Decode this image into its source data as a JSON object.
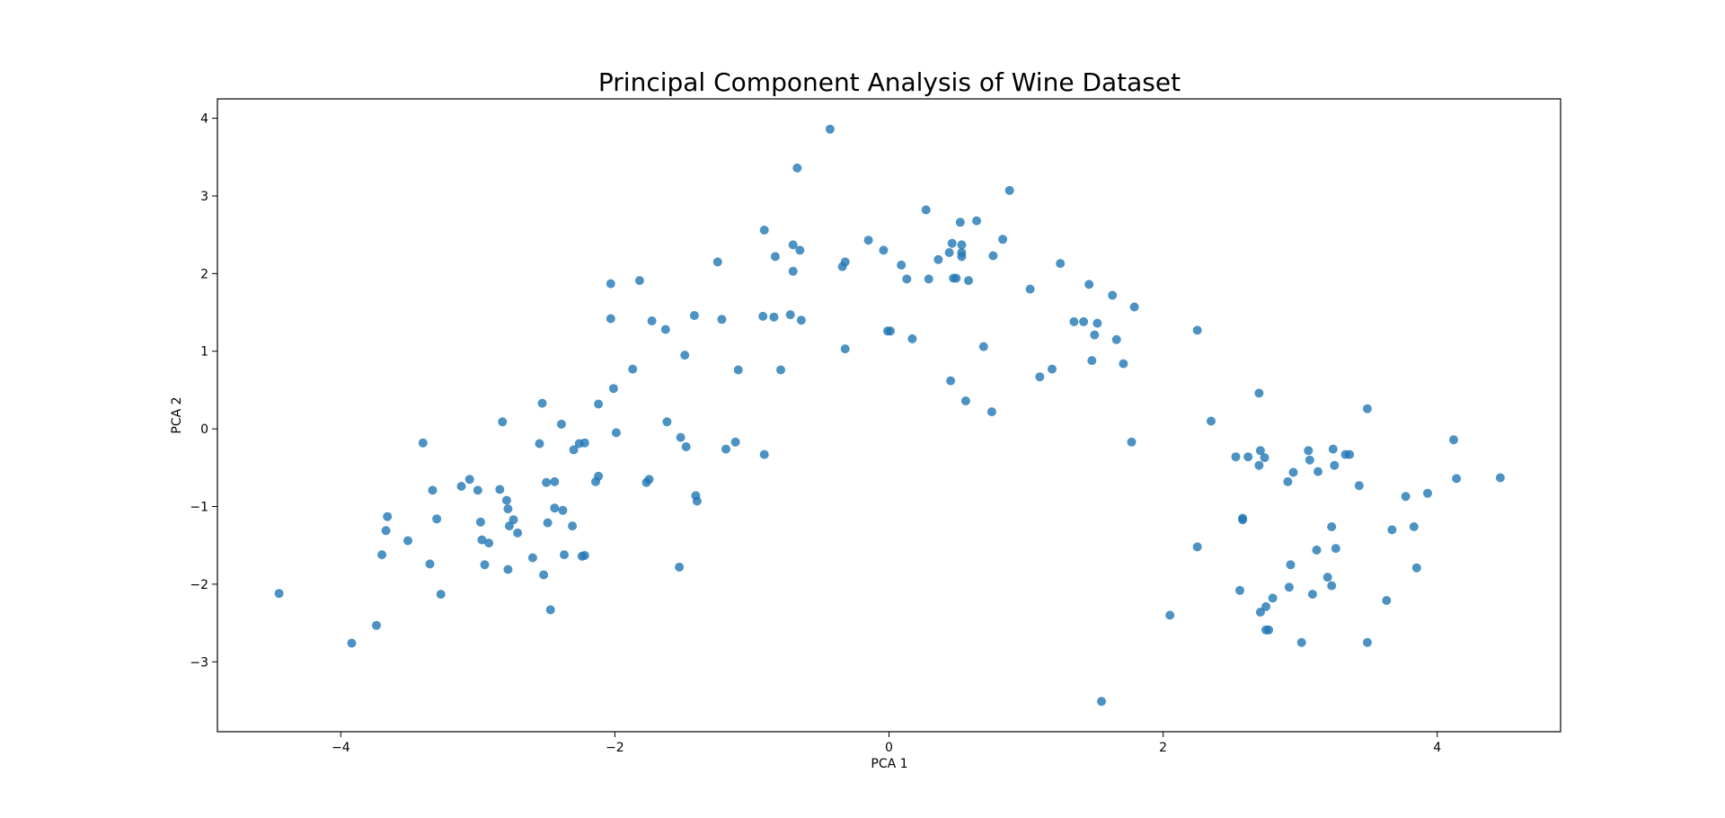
{
  "chart_data": {
    "type": "scatter",
    "title": "Principal Component Analysis of Wine Dataset",
    "xlabel": "PCA 1",
    "ylabel": "PCA 2",
    "xlim": [
      -4.9,
      4.9
    ],
    "ylim": [
      -3.9,
      4.25
    ],
    "xticks": [
      -4,
      -2,
      0,
      2,
      4
    ],
    "yticks": [
      -3,
      -2,
      -1,
      0,
      1,
      2,
      3,
      4
    ],
    "xtick_labels": [
      "−4",
      "−2",
      "0",
      "2",
      "4"
    ],
    "ytick_labels": [
      "−3",
      "−2",
      "−1",
      "0",
      "1",
      "2",
      "3",
      "4"
    ],
    "grid": false,
    "marker_color": "#1f77b4",
    "points": [
      [
        -4.45,
        -2.12
      ],
      [
        -3.92,
        -2.76
      ],
      [
        -3.74,
        -2.53
      ],
      [
        -3.7,
        -1.62
      ],
      [
        -3.67,
        -1.31
      ],
      [
        -3.66,
        -1.13
      ],
      [
        -3.51,
        -1.44
      ],
      [
        -3.4,
        -0.18
      ],
      [
        -3.35,
        -1.74
      ],
      [
        -3.33,
        -0.79
      ],
      [
        -3.3,
        -1.16
      ],
      [
        -3.27,
        -2.13
      ],
      [
        -3.12,
        -0.74
      ],
      [
        -3.06,
        -0.65
      ],
      [
        -3.0,
        -0.79
      ],
      [
        -2.98,
        -1.2
      ],
      [
        -2.97,
        -1.43
      ],
      [
        -2.95,
        -1.75
      ],
      [
        -2.92,
        -1.47
      ],
      [
        -2.84,
        -0.78
      ],
      [
        -2.82,
        0.09
      ],
      [
        -2.79,
        -0.92
      ],
      [
        -2.78,
        -1.03
      ],
      [
        -2.78,
        -1.81
      ],
      [
        -2.77,
        -1.25
      ],
      [
        -2.74,
        -1.17
      ],
      [
        -2.71,
        -1.34
      ],
      [
        -2.6,
        -1.66
      ],
      [
        -2.55,
        -0.19
      ],
      [
        -2.53,
        0.33
      ],
      [
        -2.52,
        -1.88
      ],
      [
        -2.5,
        -0.69
      ],
      [
        -2.49,
        -1.21
      ],
      [
        -2.47,
        -2.33
      ],
      [
        -2.44,
        -0.68
      ],
      [
        -2.44,
        -1.02
      ],
      [
        -2.39,
        0.06
      ],
      [
        -2.38,
        -1.05
      ],
      [
        -2.37,
        -1.62
      ],
      [
        -2.31,
        -1.25
      ],
      [
        -2.3,
        -0.27
      ],
      [
        -2.26,
        -0.19
      ],
      [
        -2.24,
        -1.64
      ],
      [
        -2.22,
        -1.63
      ],
      [
        -2.22,
        -0.18
      ],
      [
        -2.14,
        -0.68
      ],
      [
        -2.12,
        -0.61
      ],
      [
        -2.12,
        0.32
      ],
      [
        -2.03,
        1.87
      ],
      [
        -2.03,
        1.42
      ],
      [
        -2.01,
        0.52
      ],
      [
        -1.99,
        -0.05
      ],
      [
        -1.87,
        0.77
      ],
      [
        -1.82,
        1.91
      ],
      [
        -1.77,
        -0.69
      ],
      [
        -1.75,
        -0.65
      ],
      [
        -1.73,
        1.39
      ],
      [
        -1.63,
        1.28
      ],
      [
        -1.62,
        0.09
      ],
      [
        -1.53,
        -1.78
      ],
      [
        -1.52,
        -0.11
      ],
      [
        -1.49,
        0.95
      ],
      [
        -1.48,
        -0.23
      ],
      [
        -1.42,
        1.46
      ],
      [
        -1.41,
        -0.86
      ],
      [
        -1.4,
        -0.93
      ],
      [
        -1.25,
        2.15
      ],
      [
        -1.22,
        1.41
      ],
      [
        -1.19,
        -0.26
      ],
      [
        -1.12,
        -0.17
      ],
      [
        -1.1,
        0.76
      ],
      [
        -0.92,
        1.45
      ],
      [
        -0.91,
        2.56
      ],
      [
        -0.91,
        -0.33
      ],
      [
        -0.84,
        1.44
      ],
      [
        -0.83,
        2.22
      ],
      [
        -0.79,
        0.76
      ],
      [
        -0.72,
        1.47
      ],
      [
        -0.7,
        2.37
      ],
      [
        -0.7,
        2.03
      ],
      [
        -0.67,
        3.36
      ],
      [
        -0.65,
        2.3
      ],
      [
        -0.64,
        1.4
      ],
      [
        -0.43,
        3.86
      ],
      [
        -0.34,
        2.09
      ],
      [
        -0.32,
        2.15
      ],
      [
        -0.32,
        1.03
      ],
      [
        -0.15,
        2.43
      ],
      [
        -0.04,
        2.3
      ],
      [
        -0.01,
        1.26
      ],
      [
        0.01,
        1.26
      ],
      [
        0.09,
        2.11
      ],
      [
        0.13,
        1.93
      ],
      [
        0.17,
        1.16
      ],
      [
        0.27,
        2.82
      ],
      [
        0.29,
        1.93
      ],
      [
        0.36,
        2.18
      ],
      [
        0.44,
        2.27
      ],
      [
        0.45,
        0.62
      ],
      [
        0.46,
        2.39
      ],
      [
        0.47,
        1.94
      ],
      [
        0.49,
        1.94
      ],
      [
        0.52,
        2.66
      ],
      [
        0.53,
        2.37
      ],
      [
        0.53,
        2.27
      ],
      [
        0.53,
        2.22
      ],
      [
        0.56,
        0.36
      ],
      [
        0.58,
        1.91
      ],
      [
        0.64,
        2.68
      ],
      [
        0.69,
        1.06
      ],
      [
        0.75,
        0.22
      ],
      [
        0.76,
        2.23
      ],
      [
        0.83,
        2.44
      ],
      [
        0.88,
        3.07
      ],
      [
        1.03,
        1.8
      ],
      [
        1.1,
        0.67
      ],
      [
        1.19,
        0.77
      ],
      [
        1.25,
        2.13
      ],
      [
        1.35,
        1.38
      ],
      [
        1.42,
        1.38
      ],
      [
        1.46,
        1.86
      ],
      [
        1.48,
        0.88
      ],
      [
        1.5,
        1.21
      ],
      [
        1.52,
        1.36
      ],
      [
        1.55,
        -3.51
      ],
      [
        1.63,
        1.72
      ],
      [
        1.66,
        1.15
      ],
      [
        1.71,
        0.84
      ],
      [
        1.77,
        -0.17
      ],
      [
        1.79,
        1.57
      ],
      [
        2.05,
        -2.4
      ],
      [
        2.25,
        1.27
      ],
      [
        2.25,
        -1.52
      ],
      [
        2.35,
        0.1
      ],
      [
        2.53,
        -0.36
      ],
      [
        2.56,
        -2.08
      ],
      [
        2.58,
        -1.15
      ],
      [
        2.58,
        -1.17
      ],
      [
        2.62,
        -0.36
      ],
      [
        2.7,
        0.46
      ],
      [
        2.7,
        -0.47
      ],
      [
        2.71,
        -2.36
      ],
      [
        2.71,
        -0.28
      ],
      [
        2.74,
        -0.37
      ],
      [
        2.75,
        -2.29
      ],
      [
        2.75,
        -2.59
      ],
      [
        2.77,
        -2.59
      ],
      [
        2.8,
        -2.18
      ],
      [
        2.91,
        -0.68
      ],
      [
        2.92,
        -2.04
      ],
      [
        2.93,
        -1.75
      ],
      [
        2.95,
        -0.56
      ],
      [
        3.01,
        -2.75
      ],
      [
        3.06,
        -0.28
      ],
      [
        3.07,
        -0.4
      ],
      [
        3.09,
        -2.13
      ],
      [
        3.12,
        -1.56
      ],
      [
        3.13,
        -0.55
      ],
      [
        3.2,
        -1.91
      ],
      [
        3.23,
        -2.02
      ],
      [
        3.23,
        -1.26
      ],
      [
        3.24,
        -0.26
      ],
      [
        3.25,
        -0.47
      ],
      [
        3.26,
        -1.54
      ],
      [
        3.33,
        -0.33
      ],
      [
        3.36,
        -0.33
      ],
      [
        3.43,
        -0.73
      ],
      [
        3.49,
        0.26
      ],
      [
        3.49,
        -2.75
      ],
      [
        3.63,
        -2.21
      ],
      [
        3.67,
        -1.3
      ],
      [
        3.77,
        -0.87
      ],
      [
        3.83,
        -1.26
      ],
      [
        3.85,
        -1.79
      ],
      [
        3.93,
        -0.83
      ],
      [
        4.12,
        -0.14
      ],
      [
        4.14,
        -0.64
      ],
      [
        4.46,
        -0.63
      ]
    ]
  }
}
